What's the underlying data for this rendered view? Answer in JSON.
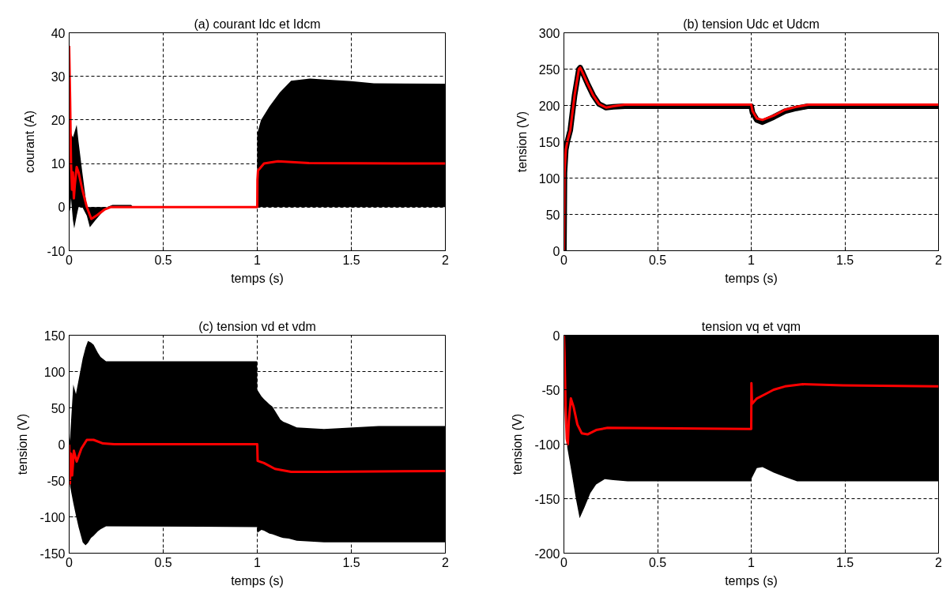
{
  "chart_data": [
    {
      "type": "line",
      "title": "(a) courant Idc et Idcm",
      "xlabel": "temps (s)",
      "ylabel": "courant (A)",
      "xlim": [
        0,
        2
      ],
      "xticks": [
        0,
        0.5,
        1,
        1.5,
        2
      ],
      "ylim": [
        -10,
        40
      ],
      "yticks": [
        -10,
        0,
        10,
        20,
        30,
        40
      ],
      "grid": true,
      "series": [
        {
          "color": "#000000",
          "x": [
            0,
            0.005,
            0.01,
            0.02,
            0.027,
            0.04,
            0.05,
            0.07,
            0.094,
            0.11,
            0.14,
            0.2,
            0.23,
            0.33,
            0.34,
            0.999,
            1.0,
            1.02,
            1.065,
            1.12,
            1.18,
            1.28,
            1.5,
            1.62,
            2
          ],
          "values": [
            null,
            null,
            null,
            null,
            null,
            null,
            null,
            null,
            null,
            null,
            null,
            null,
            null,
            null,
            null,
            null,
            null,
            null,
            null,
            null,
            null,
            null,
            null,
            null,
            null
          ],
          "lower": [
            0,
            -1,
            2,
            -3,
            -4.9,
            -2,
            0,
            0,
            -2,
            -4.6,
            -3,
            0,
            0,
            0,
            0,
            0,
            0,
            0,
            0,
            0,
            0,
            0,
            0,
            0,
            0
          ],
          "upper": [
            0,
            20.5,
            17,
            16,
            17,
            18.9,
            15,
            8,
            0,
            0,
            0,
            0,
            0.5,
            0.5,
            0,
            0,
            16.9,
            20,
            23.1,
            26.3,
            29,
            29.5,
            28.9,
            28.4,
            28.3
          ]
        },
        {
          "color": "#ff0000",
          "x": [
            0,
            0.005,
            0.01,
            0.015,
            0.02,
            0.025,
            0.03,
            0.04,
            0.05,
            0.07,
            0.094,
            0.118,
            0.15,
            0.19,
            0.22,
            1.0,
            1.001,
            1.004,
            1.036,
            1.11,
            1.275,
            2
          ],
          "values": [
            37,
            25,
            10,
            4,
            8,
            2,
            5,
            9.2,
            8,
            4,
            0,
            -2.7,
            -1.8,
            -0.5,
            0,
            0,
            6.3,
            8.4,
            10,
            10.5,
            10.1,
            10
          ]
        }
      ]
    },
    {
      "type": "line",
      "title": "(b) tension Udc et Udcm",
      "xlabel": "temps (s)",
      "ylabel": "tension (V)",
      "xlim": [
        0,
        2
      ],
      "xticks": [
        0,
        0.5,
        1,
        1.5,
        2
      ],
      "ylim": [
        0,
        300
      ],
      "yticks": [
        0,
        50,
        100,
        150,
        200,
        250,
        300
      ],
      "grid": true,
      "series": [
        {
          "color": "#000000",
          "x": [
            0,
            0.003,
            0.01,
            0.018,
            0.034,
            0.057,
            0.08,
            0.087,
            0.1,
            0.126,
            0.156,
            0.187,
            0.225,
            0.264,
            0.325,
            1.0,
            1.007,
            1.03,
            1.06,
            1.12,
            1.18,
            1.24,
            1.306,
            2
          ],
          "values": [
            0,
            107,
            139,
            150,
            166,
            214,
            250,
            252,
            245,
            230,
            214,
            202,
            197,
            198,
            199,
            199,
            190,
            180,
            177,
            184,
            192,
            196,
            199,
            199
          ]
        },
        {
          "color": "#ff0000",
          "x": [
            0,
            0.003,
            0.01,
            0.018,
            0.034,
            0.057,
            0.08,
            0.087,
            0.1,
            0.126,
            0.156,
            0.187,
            0.225,
            0.264,
            0.325,
            1.0,
            1.007,
            1.03,
            1.06,
            1.12,
            1.18,
            1.24,
            1.306,
            2
          ],
          "values": [
            0,
            107,
            139,
            150,
            166,
            214,
            250,
            252,
            245,
            230,
            214,
            202,
            197,
            199,
            201,
            201,
            192,
            182,
            180,
            186,
            194,
            198,
            201,
            201
          ]
        }
      ]
    },
    {
      "type": "line",
      "title": "(c) tension vd et vdm",
      "xlabel": "temps (s)",
      "ylabel": "tension (V)",
      "xlim": [
        0,
        2
      ],
      "xticks": [
        0,
        0.5,
        1,
        1.5,
        2
      ],
      "ylim": [
        -150,
        150
      ],
      "yticks": [
        -150,
        -100,
        -50,
        0,
        50,
        100,
        150
      ],
      "grid": true,
      "series": [
        {
          "color": "#000000",
          "x": [
            0,
            0.005,
            0.022,
            0.036,
            0.05,
            0.072,
            0.087,
            0.1,
            0.116,
            0.13,
            0.152,
            0.167,
            0.196,
            0.999,
            1.0,
            1.022,
            1.036,
            1.065,
            1.08,
            1.123,
            1.138,
            1.167,
            1.21,
            1.355,
            1.645,
            2
          ],
          "values": [
            null,
            null,
            null,
            null,
            null,
            null,
            null,
            null,
            null,
            null,
            null,
            null,
            null,
            null,
            null,
            null,
            null,
            null,
            null,
            null,
            null,
            null,
            null,
            null,
            null,
            null
          ],
          "lower": [
            0,
            -58,
            -81,
            -98,
            -114,
            -135,
            -139,
            -136,
            -129,
            -126,
            -120,
            -117,
            -113,
            -114,
            -122,
            -118,
            -119,
            -123,
            -124,
            -128,
            -129,
            -130,
            -133,
            -135,
            -135,
            -135
          ],
          "upper": [
            0,
            10,
            82,
            69,
            88,
            118,
            133,
            142,
            140,
            137,
            126,
            120,
            114,
            114,
            75,
            66,
            62,
            55,
            52,
            34,
            31,
            28,
            23,
            21,
            25,
            25
          ]
        },
        {
          "color": "#ff0000",
          "x": [
            0,
            0.004,
            0.01,
            0.016,
            0.025,
            0.04,
            0.065,
            0.094,
            0.13,
            0.18,
            0.24,
            1.0,
            1.002,
            1.036,
            1.094,
            1.18,
            1.355,
            2
          ],
          "values": [
            0,
            -54,
            -13,
            -43,
            -9,
            -24,
            -6,
            6,
            6,
            1,
            0,
            0,
            -23,
            -26,
            -34,
            -38,
            -38,
            -37
          ]
        }
      ]
    },
    {
      "type": "line",
      "title": "tension vq et vqm",
      "xlabel": "temps (s)",
      "ylabel": "tension (V)",
      "xlim": [
        0,
        2
      ],
      "xticks": [
        0,
        0.5,
        1,
        1.5,
        2
      ],
      "ylim": [
        -200,
        0
      ],
      "yticks": [
        -200,
        -150,
        -100,
        -50,
        0
      ],
      "grid": true,
      "series": [
        {
          "color": "#000000",
          "x": [
            0,
            0.005,
            0.018,
            0.041,
            0.064,
            0.084,
            0.11,
            0.141,
            0.172,
            0.218,
            0.264,
            0.34,
            0.999,
            1.0,
            1.03,
            1.06,
            1.12,
            1.18,
            1.245,
            2
          ],
          "values": [
            null,
            null,
            null,
            null,
            null,
            null,
            null,
            null,
            null,
            null,
            null,
            null,
            null,
            null,
            null,
            null,
            null,
            null,
            null,
            null
          ],
          "lower": [
            0,
            -60,
            -103,
            -126,
            -150,
            -168,
            -158,
            -145,
            -137,
            -132,
            -133,
            -134,
            -134,
            -132,
            -122,
            -121,
            -126,
            -130,
            -134,
            -134
          ],
          "upper": [
            0,
            0,
            0,
            0,
            0,
            0,
            0,
            0,
            0,
            0,
            0,
            0,
            0,
            0,
            0,
            0,
            0,
            0,
            0,
            0
          ]
        },
        {
          "color": "#ff0000",
          "x": [
            0,
            0.003,
            0.009,
            0.015,
            0.021,
            0.026,
            0.037,
            0.052,
            0.072,
            0.095,
            0.126,
            0.172,
            0.233,
            1.0,
            1.001,
            1.004,
            1.03,
            1.076,
            1.12,
            1.18,
            1.275,
            1.49,
            2
          ],
          "values": [
            0,
            -16,
            -66,
            -95,
            -100,
            -79,
            -58,
            -66,
            -82,
            -90,
            -91,
            -87,
            -85,
            -86,
            -44,
            -63,
            -58,
            -54,
            -50,
            -47,
            -45,
            -46,
            -47
          ]
        }
      ]
    }
  ]
}
